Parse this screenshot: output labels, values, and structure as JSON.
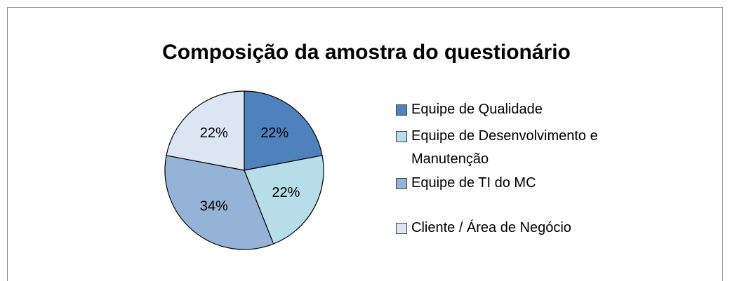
{
  "chart_data": {
    "type": "pie",
    "title": "Composição da amostra do questionário",
    "categories": [
      "Equipe de Qualidade",
      "Equipe de Desenvolvimento e Manutenção",
      "Equipe de TI do MC",
      "Cliente / Área de Negócio"
    ],
    "values": [
      22,
      22,
      34,
      22
    ],
    "value_labels": [
      "22%",
      "22%",
      "34%",
      "22%"
    ],
    "colors": [
      "#4f81bd",
      "#b7dee8",
      "#95b3d7",
      "#dce6f2"
    ],
    "legend": "right"
  }
}
